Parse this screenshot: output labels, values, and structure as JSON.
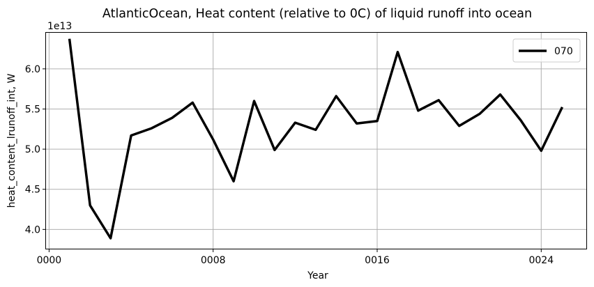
{
  "chart_data": {
    "type": "line",
    "title": "AtlanticOcean, Heat content (relative to 0C) of liquid runoff into ocean",
    "xlabel": "Year",
    "ylabel": "heat_content_lrunoff_int, W",
    "y_offset_label": "1e13",
    "y_scale_factor": 10000000000000.0,
    "xlim": [
      -0.15,
      26.2
    ],
    "ylim": [
      3.76,
      6.45
    ],
    "x_ticks": [
      0,
      8,
      16,
      24
    ],
    "x_tick_labels": [
      "0000",
      "0008",
      "0016",
      "0024"
    ],
    "y_ticks": [
      4.0,
      4.5,
      5.0,
      5.5,
      6.0
    ],
    "y_tick_labels": [
      "4.0",
      "4.5",
      "5.0",
      "5.5",
      "6.0"
    ],
    "grid": true,
    "legend_position": "top-right",
    "series": [
      {
        "name": "070",
        "color": "#000000",
        "x": [
          1,
          2,
          3,
          4,
          5,
          6,
          7,
          8,
          9,
          10,
          11,
          12,
          13,
          14,
          15,
          16,
          17,
          18,
          19,
          20,
          21,
          22,
          23,
          24,
          25
        ],
        "values": [
          6.36,
          4.3,
          3.89,
          5.17,
          5.26,
          5.39,
          5.58,
          5.12,
          4.6,
          5.6,
          4.99,
          5.33,
          5.24,
          5.66,
          5.32,
          5.35,
          6.21,
          5.48,
          5.61,
          5.29,
          5.44,
          5.68,
          5.36,
          4.98,
          5.51
        ]
      }
    ]
  }
}
